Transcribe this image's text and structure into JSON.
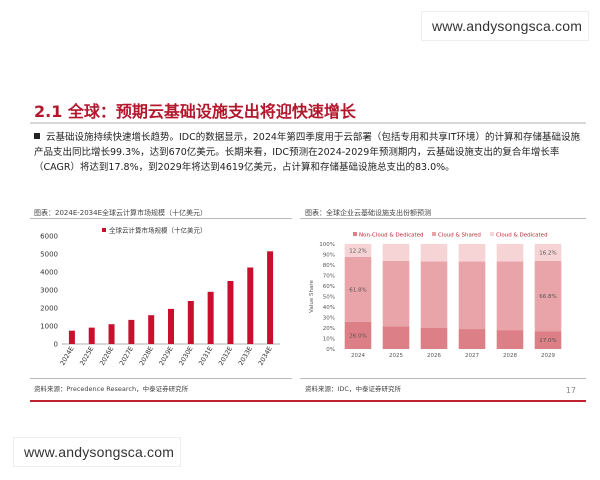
{
  "watermark": "www.andysongsca.com",
  "section": {
    "title": "2.1 全球：预期云基础设施支出将迎快速增长",
    "bullet": "云基础设施持续快速增长趋势。IDC的数据显示，2024年第四季度用于云部署（包括专用和共享IT环境）的计算和存储基础设施产品支出同比增长99.3%，达到670亿美元。长期来看，IDC预测在2024-2029年预测期内，云基础设施支出的复合年增长率（CAGR）将达到17.8%，到2029年将达到4619亿美元，占计算和存储基础设施总支出的83.0%。"
  },
  "figures": {
    "left_caption": "图表：2024E-2034E全球云计算市场规模（十亿美元）",
    "right_caption": "图表：全球企业云基础设施支出份额预测",
    "left_source": "资料来源：Precedence Research，中泰证券研究所",
    "right_source": "资料来源：IDC，中泰证券研究所"
  },
  "page_number": "17",
  "colors": {
    "accent": "#b3172c",
    "bar": "#c8102e",
    "nonCloud": "#dc7f86",
    "shared": "#e9a4a9",
    "dedicated": "#f6d3d5"
  },
  "chart_data": [
    {
      "type": "bar",
      "title": "",
      "legend": "全球云计算市场规模（十亿美元）",
      "categories": [
        "2024E",
        "2025E",
        "2026E",
        "2027E",
        "2028E",
        "2029E",
        "2030E",
        "2031E",
        "2032E",
        "2033E",
        "2034E"
      ],
      "values": [
        740,
        910,
        1100,
        1340,
        1600,
        1950,
        2390,
        2900,
        3500,
        4250,
        5150
      ],
      "ylim": [
        0,
        6000
      ],
      "yticks": [
        0,
        1000,
        2000,
        3000,
        4000,
        5000,
        6000
      ],
      "grid": false
    },
    {
      "type": "bar",
      "stacked": true,
      "ylabel": "Value Share",
      "categories": [
        "2024",
        "2025",
        "2026",
        "2027",
        "2028",
        "2029"
      ],
      "ylim": [
        0,
        100
      ],
      "yticks": [
        "0%",
        "10%",
        "20%",
        "30%",
        "40%",
        "50%",
        "60%",
        "70%",
        "80%",
        "90%",
        "100%"
      ],
      "series": [
        {
          "name": "Non-Cloud & Dedicated",
          "values": [
            26.0,
            21.5,
            20.0,
            19.0,
            18.0,
            17.0
          ]
        },
        {
          "name": "Cloud & Shared",
          "values": [
            61.8,
            62.5,
            63.5,
            64.5,
            65.5,
            66.8
          ]
        },
        {
          "name": "Cloud & Dedicated",
          "values": [
            12.2,
            16.0,
            16.5,
            16.5,
            16.5,
            16.2
          ]
        }
      ],
      "data_labels": [
        {
          "category": "2024",
          "series": "Non-Cloud & Dedicated",
          "text": "26.0%"
        },
        {
          "category": "2024",
          "series": "Cloud & Shared",
          "text": "61.8%"
        },
        {
          "category": "2024",
          "series": "Cloud & Dedicated",
          "text": "12.2%"
        },
        {
          "category": "2029",
          "series": "Non-Cloud & Dedicated",
          "text": "17.0%"
        },
        {
          "category": "2029",
          "series": "Cloud & Shared",
          "text": "66.8%"
        },
        {
          "category": "2029",
          "series": "Cloud & Dedicated",
          "text": "16.2%"
        }
      ],
      "legend_position": "top"
    }
  ]
}
